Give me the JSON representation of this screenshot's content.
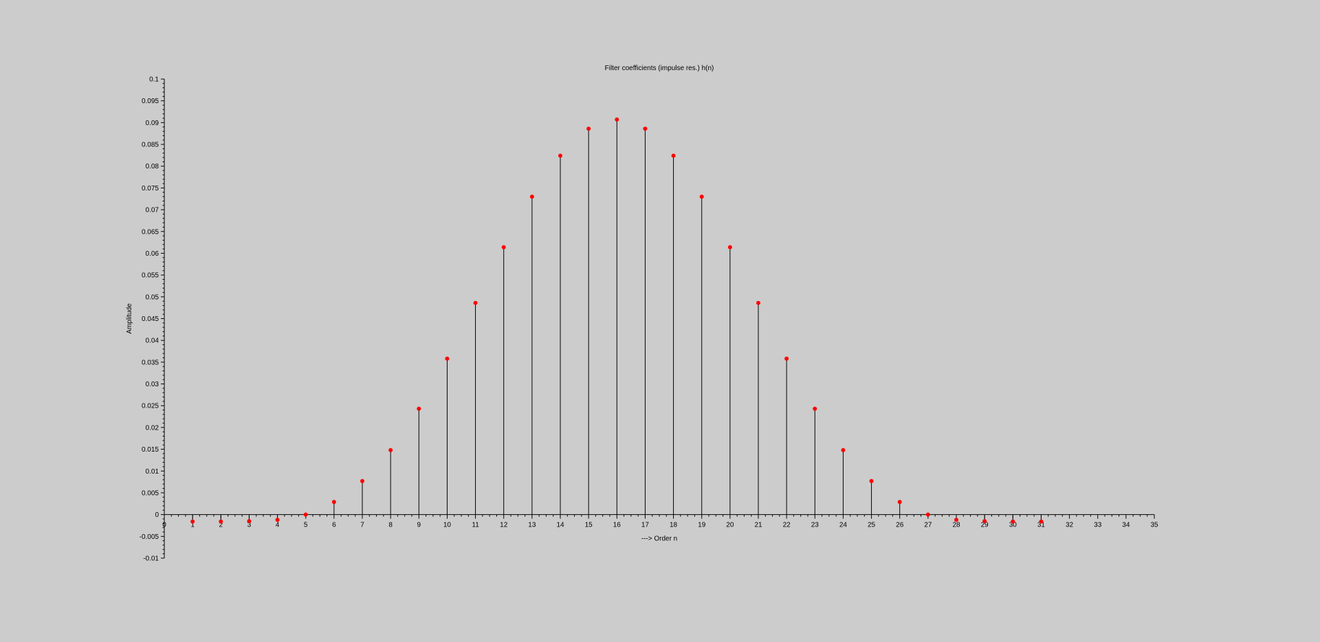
{
  "chart_data": {
    "type": "stem",
    "title": "Filter coefficients (impulse res.) h(n)",
    "xlabel": "---> Order n",
    "ylabel": "Amplitude",
    "xlim": [
      0,
      35
    ],
    "ylim": [
      -0.01,
      0.1
    ],
    "xticks": [
      0,
      1,
      2,
      3,
      4,
      5,
      6,
      7,
      8,
      9,
      10,
      11,
      12,
      13,
      14,
      15,
      16,
      17,
      18,
      19,
      20,
      21,
      22,
      23,
      24,
      25,
      26,
      27,
      28,
      29,
      30,
      31,
      32,
      33,
      34,
      35
    ],
    "yticks": [
      -0.01,
      -0.005,
      0,
      0.005,
      0.01,
      0.015,
      0.02,
      0.025,
      0.03,
      0.035,
      0.04,
      0.045,
      0.05,
      0.055,
      0.06,
      0.065,
      0.07,
      0.075,
      0.08,
      0.085,
      0.09,
      0.095,
      0.1
    ],
    "ytick_labels": [
      "-0.01",
      "-0.005",
      "0",
      "0.005",
      "0.01",
      "0.015",
      "0.02",
      "0.025",
      "0.03",
      "0.035",
      "0.04",
      "0.045",
      "0.05",
      "0.055",
      "0.06",
      "0.065",
      "0.07",
      "0.075",
      "0.08",
      "0.085",
      "0.09",
      "0.095",
      "0.1"
    ],
    "grid": false,
    "stem_color": "#000000",
    "marker_color": "#ff0000",
    "background": "#cccccc",
    "x": [
      1,
      2,
      3,
      4,
      5,
      6,
      7,
      8,
      9,
      10,
      11,
      12,
      13,
      14,
      15,
      16,
      17,
      18,
      19,
      20,
      21,
      22,
      23,
      24,
      25,
      26,
      27,
      28,
      29,
      30,
      31
    ],
    "values": [
      -0.0016,
      -0.0016,
      -0.0015,
      -0.0012,
      0.0,
      0.0029,
      0.0077,
      0.0148,
      0.0243,
      0.0358,
      0.0486,
      0.0614,
      0.073,
      0.0824,
      0.0886,
      0.0907,
      0.0886,
      0.0824,
      0.073,
      0.0614,
      0.0486,
      0.0358,
      0.0243,
      0.0148,
      0.0077,
      0.0029,
      0.0,
      -0.0012,
      -0.0015,
      -0.0016,
      -0.0016
    ]
  }
}
